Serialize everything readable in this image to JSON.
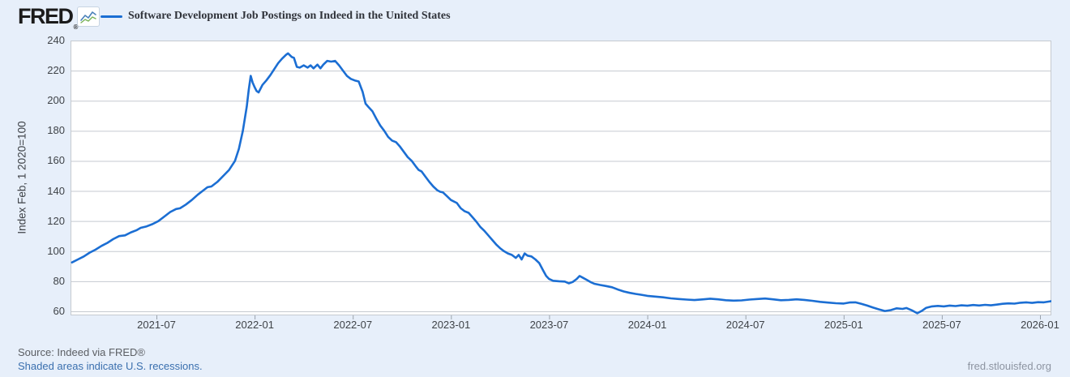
{
  "header": {
    "logo_text": "FRED",
    "logo_registered": "®",
    "legend": {
      "series_label": "Software Development Job Postings on Indeed in the United States",
      "swatch_color": "#1b6ed3"
    }
  },
  "footer": {
    "source_text": "Source: Indeed via FRED®",
    "recession_note": "Shaded areas indicate U.S. recessions.",
    "site_link": "fred.stlouisfed.org"
  },
  "colors": {
    "page_background": "#e7effa",
    "plot_background": "#ffffff",
    "line": "#1b6ed3",
    "gridline": "#c5cad0",
    "tick": "#9aa2ab"
  },
  "chart_data": {
    "type": "line",
    "title": "Software Development Job Postings on Indeed in the United States",
    "xlabel": "",
    "ylabel": "Index Feb, 1 2020=100",
    "grid": "horizontal",
    "legend_position": "top-left",
    "x_unit": "decimal_year",
    "x_range": [
      2021.07,
      2026.06
    ],
    "ylim": [
      57,
      240
    ],
    "yticks": [
      60,
      80,
      100,
      120,
      140,
      160,
      180,
      200,
      220,
      240
    ],
    "xticks": [
      {
        "t": 2021.5,
        "label": "2021-07"
      },
      {
        "t": 2022.0,
        "label": "2022-01"
      },
      {
        "t": 2022.5,
        "label": "2022-07"
      },
      {
        "t": 2023.0,
        "label": "2023-01"
      },
      {
        "t": 2023.5,
        "label": "2023-07"
      },
      {
        "t": 2024.0,
        "label": "2024-01"
      },
      {
        "t": 2024.5,
        "label": "2024-07"
      },
      {
        "t": 2025.0,
        "label": "2025-01"
      },
      {
        "t": 2025.5,
        "label": "2025-07"
      },
      {
        "t": 2026.0,
        "label": "2026-01"
      }
    ],
    "series": [
      {
        "name": "Software Development Job Postings on Indeed in the United States",
        "points": [
          [
            2021.07,
            92.5
          ],
          [
            2021.1,
            94.5
          ],
          [
            2021.13,
            96.5
          ],
          [
            2021.16,
            99
          ],
          [
            2021.19,
            101
          ],
          [
            2021.22,
            103.5
          ],
          [
            2021.25,
            105.5
          ],
          [
            2021.28,
            108
          ],
          [
            2021.31,
            110
          ],
          [
            2021.34,
            110.5
          ],
          [
            2021.37,
            112.5
          ],
          [
            2021.4,
            114
          ],
          [
            2021.42,
            115.5
          ],
          [
            2021.45,
            116.5
          ],
          [
            2021.48,
            118
          ],
          [
            2021.51,
            120
          ],
          [
            2021.54,
            123
          ],
          [
            2021.57,
            126
          ],
          [
            2021.6,
            128
          ],
          [
            2021.62,
            128.5
          ],
          [
            2021.65,
            131
          ],
          [
            2021.68,
            134
          ],
          [
            2021.71,
            137.5
          ],
          [
            2021.74,
            140.5
          ],
          [
            2021.76,
            142.5
          ],
          [
            2021.78,
            143
          ],
          [
            2021.81,
            146
          ],
          [
            2021.84,
            150
          ],
          [
            2021.87,
            154
          ],
          [
            2021.9,
            160
          ],
          [
            2021.92,
            168
          ],
          [
            2021.94,
            180
          ],
          [
            2021.96,
            196
          ],
          [
            2021.97,
            207
          ],
          [
            2021.98,
            216.5
          ],
          [
            2021.99,
            212
          ],
          [
            2022.0,
            209
          ],
          [
            2022.01,
            206.5
          ],
          [
            2022.02,
            205.5
          ],
          [
            2022.03,
            208
          ],
          [
            2022.04,
            210.5
          ],
          [
            2022.06,
            213.5
          ],
          [
            2022.08,
            217
          ],
          [
            2022.1,
            221
          ],
          [
            2022.12,
            225
          ],
          [
            2022.14,
            228
          ],
          [
            2022.16,
            230.5
          ],
          [
            2022.17,
            231.5
          ],
          [
            2022.19,
            229
          ],
          [
            2022.2,
            228.5
          ],
          [
            2022.215,
            222.5
          ],
          [
            2022.23,
            222
          ],
          [
            2022.25,
            223.5
          ],
          [
            2022.27,
            222
          ],
          [
            2022.285,
            223.5
          ],
          [
            2022.3,
            221.5
          ],
          [
            2022.32,
            224
          ],
          [
            2022.335,
            221.5
          ],
          [
            2022.35,
            224
          ],
          [
            2022.37,
            226.5
          ],
          [
            2022.39,
            226
          ],
          [
            2022.41,
            226.5
          ],
          [
            2022.43,
            223.5
          ],
          [
            2022.45,
            220
          ],
          [
            2022.47,
            216.5
          ],
          [
            2022.49,
            214.5
          ],
          [
            2022.51,
            213.5
          ],
          [
            2022.53,
            212.8
          ],
          [
            2022.55,
            206
          ],
          [
            2022.565,
            198
          ],
          [
            2022.58,
            195.8
          ],
          [
            2022.6,
            193
          ],
          [
            2022.62,
            188
          ],
          [
            2022.64,
            183.5
          ],
          [
            2022.66,
            180
          ],
          [
            2022.68,
            176
          ],
          [
            2022.7,
            173.5
          ],
          [
            2022.72,
            172.5
          ],
          [
            2022.74,
            169.5
          ],
          [
            2022.76,
            166
          ],
          [
            2022.78,
            162.5
          ],
          [
            2022.8,
            160
          ],
          [
            2022.82,
            156.5
          ],
          [
            2022.835,
            154
          ],
          [
            2022.85,
            153
          ],
          [
            2022.87,
            149.5
          ],
          [
            2022.89,
            146
          ],
          [
            2022.91,
            143
          ],
          [
            2022.93,
            140.5
          ],
          [
            2022.945,
            139.5
          ],
          [
            2022.96,
            139
          ],
          [
            2022.98,
            136.5
          ],
          [
            2023.0,
            134
          ],
          [
            2023.03,
            132
          ],
          [
            2023.05,
            128.5
          ],
          [
            2023.07,
            126.5
          ],
          [
            2023.09,
            125.5
          ],
          [
            2023.11,
            122.5
          ],
          [
            2023.13,
            119.5
          ],
          [
            2023.15,
            116
          ],
          [
            2023.17,
            113.5
          ],
          [
            2023.19,
            110.5
          ],
          [
            2023.21,
            107.5
          ],
          [
            2023.23,
            104.5
          ],
          [
            2023.25,
            102
          ],
          [
            2023.27,
            100
          ],
          [
            2023.29,
            98.5
          ],
          [
            2023.31,
            97.5
          ],
          [
            2023.33,
            95.5
          ],
          [
            2023.345,
            97.5
          ],
          [
            2023.36,
            94.5
          ],
          [
            2023.375,
            98.5
          ],
          [
            2023.39,
            97
          ],
          [
            2023.41,
            96.5
          ],
          [
            2023.43,
            94.5
          ],
          [
            2023.45,
            92
          ],
          [
            2023.47,
            87
          ],
          [
            2023.485,
            83.5
          ],
          [
            2023.5,
            81.5
          ],
          [
            2023.52,
            80.3
          ],
          [
            2023.55,
            80
          ],
          [
            2023.58,
            79.8
          ],
          [
            2023.6,
            78.6
          ],
          [
            2023.62,
            79.5
          ],
          [
            2023.64,
            81.5
          ],
          [
            2023.655,
            83.5
          ],
          [
            2023.67,
            82.5
          ],
          [
            2023.69,
            81
          ],
          [
            2023.71,
            79.5
          ],
          [
            2023.73,
            78.3
          ],
          [
            2023.76,
            77.5
          ],
          [
            2023.79,
            76.8
          ],
          [
            2023.82,
            76
          ],
          [
            2023.85,
            74.5
          ],
          [
            2023.88,
            73.2
          ],
          [
            2023.91,
            72.3
          ],
          [
            2023.94,
            71.6
          ],
          [
            2023.97,
            71
          ],
          [
            2024.0,
            70.3
          ],
          [
            2024.04,
            69.8
          ],
          [
            2024.08,
            69.3
          ],
          [
            2024.12,
            68.6
          ],
          [
            2024.16,
            68.2
          ],
          [
            2024.2,
            67.8
          ],
          [
            2024.24,
            67.5
          ],
          [
            2024.28,
            67.9
          ],
          [
            2024.32,
            68.4
          ],
          [
            2024.36,
            68
          ],
          [
            2024.4,
            67.4
          ],
          [
            2024.44,
            67.1
          ],
          [
            2024.48,
            67.3
          ],
          [
            2024.52,
            67.8
          ],
          [
            2024.56,
            68.2
          ],
          [
            2024.6,
            68.5
          ],
          [
            2024.64,
            68
          ],
          [
            2024.68,
            67.4
          ],
          [
            2024.72,
            67.6
          ],
          [
            2024.76,
            68
          ],
          [
            2024.8,
            67.6
          ],
          [
            2024.84,
            67
          ],
          [
            2024.88,
            66.3
          ],
          [
            2024.92,
            65.8
          ],
          [
            2024.96,
            65.4
          ],
          [
            2025.0,
            65.2
          ],
          [
            2025.03,
            65.9
          ],
          [
            2025.06,
            66
          ],
          [
            2025.09,
            65
          ],
          [
            2025.12,
            63.8
          ],
          [
            2025.15,
            62.5
          ],
          [
            2025.18,
            61.3
          ],
          [
            2025.21,
            60.2
          ],
          [
            2025.24,
            60.8
          ],
          [
            2025.27,
            62
          ],
          [
            2025.3,
            61.6
          ],
          [
            2025.32,
            62.2
          ],
          [
            2025.35,
            60.5
          ],
          [
            2025.375,
            58.7
          ],
          [
            2025.4,
            60.5
          ],
          [
            2025.42,
            62.3
          ],
          [
            2025.45,
            63.3
          ],
          [
            2025.48,
            63.6
          ],
          [
            2025.51,
            63.3
          ],
          [
            2025.54,
            63.8
          ],
          [
            2025.57,
            63.5
          ],
          [
            2025.6,
            64
          ],
          [
            2025.63,
            63.7
          ],
          [
            2025.66,
            64.2
          ],
          [
            2025.69,
            63.9
          ],
          [
            2025.72,
            64.3
          ],
          [
            2025.75,
            64
          ],
          [
            2025.78,
            64.5
          ],
          [
            2025.81,
            65
          ],
          [
            2025.84,
            65.3
          ],
          [
            2025.87,
            65.1
          ],
          [
            2025.9,
            65.7
          ],
          [
            2025.93,
            66
          ],
          [
            2025.96,
            65.6
          ],
          [
            2025.99,
            66.1
          ],
          [
            2026.02,
            66
          ],
          [
            2026.04,
            66.4
          ],
          [
            2026.06,
            66.8
          ]
        ]
      }
    ]
  }
}
